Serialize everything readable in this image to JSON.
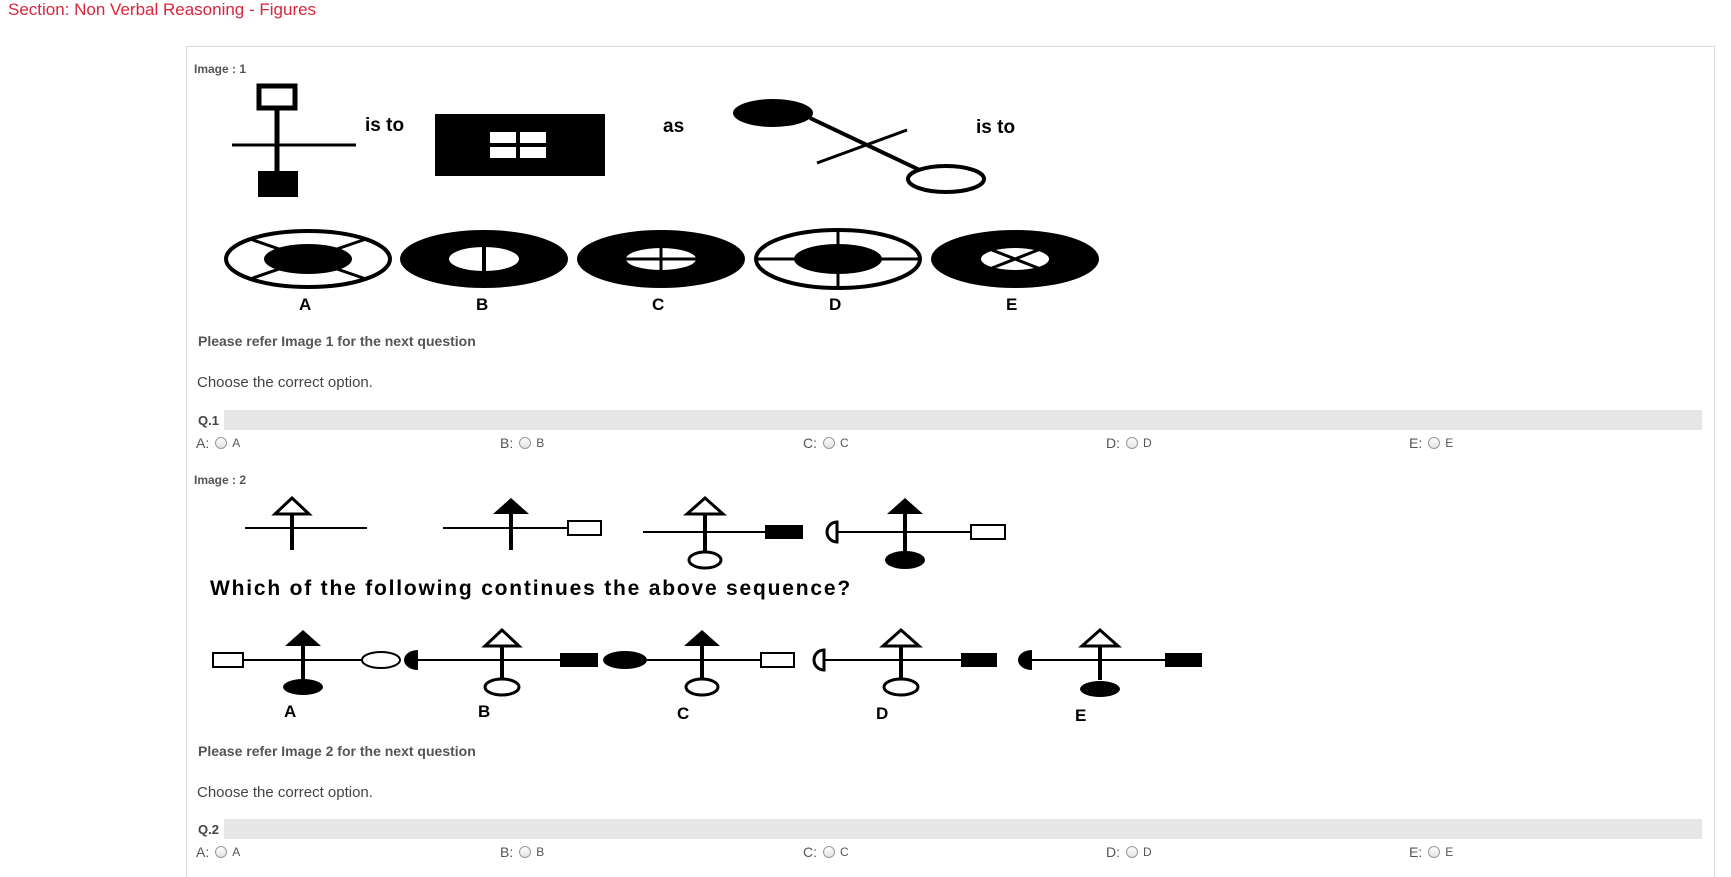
{
  "section_title": "Section: Non Verbal Reasoning - Figures",
  "questions": [
    {
      "image_label": "Image : 1",
      "figure_text": {
        "is_to_1": "is to",
        "as": "as",
        "is_to_2": "is to"
      },
      "answer_letters": [
        "A",
        "B",
        "C",
        "D",
        "E"
      ],
      "refer_text": "Please refer Image 1 for the next question",
      "prompt": "Choose the correct option.",
      "number": "Q.1",
      "options": [
        {
          "key": "A:",
          "value": "A"
        },
        {
          "key": "B:",
          "value": "B"
        },
        {
          "key": "C:",
          "value": "C"
        },
        {
          "key": "D:",
          "value": "D"
        },
        {
          "key": "E:",
          "value": "E"
        }
      ]
    },
    {
      "image_label": "Image : 2",
      "figure_text": {
        "question": "Which of the following continues the above sequence?"
      },
      "answer_letters": [
        "A",
        "B",
        "C",
        "D",
        "E"
      ],
      "refer_text": "Please refer Image 2 for the next question",
      "prompt": "Choose the correct option.",
      "number": "Q.2",
      "options": [
        {
          "key": "A:",
          "value": "A"
        },
        {
          "key": "B:",
          "value": "B"
        },
        {
          "key": "C:",
          "value": "C"
        },
        {
          "key": "D:",
          "value": "D"
        },
        {
          "key": "E:",
          "value": "E"
        }
      ]
    }
  ]
}
